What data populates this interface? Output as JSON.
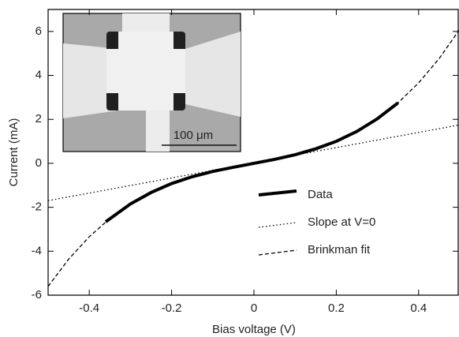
{
  "chart_data": {
    "type": "line",
    "x_label": "Bias voltage (V)",
    "y_label": "Current (mA)",
    "xlim": [
      -0.5,
      0.5
    ],
    "ylim": [
      -6,
      7
    ],
    "xticks": [
      -0.4,
      -0.2,
      0,
      0.2,
      0.4
    ],
    "yticks": [
      -6,
      -4,
      -2,
      0,
      2,
      4,
      6
    ],
    "inset_label": "100 μm",
    "series": [
      {
        "name": "Data",
        "color": "#000000",
        "style": "solid",
        "x": [
          -0.36,
          -0.3,
          -0.25,
          -0.2,
          -0.15,
          -0.1,
          -0.05,
          0,
          0.05,
          0.1,
          0.15,
          0.2,
          0.25,
          0.3,
          0.35
        ],
        "values": [
          -2.66,
          -1.85,
          -1.33,
          -0.92,
          -0.61,
          -0.37,
          -0.18,
          0,
          0.18,
          0.39,
          0.66,
          1.0,
          1.45,
          2.03,
          2.75
        ]
      },
      {
        "name": "Slope at V=0",
        "color": "#000000",
        "style": "dotted",
        "x": [
          -0.5,
          0.5
        ],
        "values": [
          -1.7,
          1.75
        ]
      },
      {
        "name": "Brinkman fit",
        "color": "#000000",
        "style": "dashed",
        "x": [
          -0.5,
          -0.45,
          -0.4,
          -0.35,
          -0.3,
          -0.25,
          -0.2,
          -0.15,
          -0.1,
          -0.05,
          0,
          0.05,
          0.1,
          0.15,
          0.2,
          0.25,
          0.3,
          0.35,
          0.4,
          0.45,
          0.5
        ],
        "values": [
          -5.6,
          -4.36,
          -3.34,
          -2.51,
          -1.85,
          -1.33,
          -0.92,
          -0.61,
          -0.37,
          -0.18,
          0,
          0.18,
          0.39,
          0.66,
          1.0,
          1.45,
          2.03,
          2.75,
          3.66,
          4.77,
          6.1
        ]
      }
    ]
  }
}
